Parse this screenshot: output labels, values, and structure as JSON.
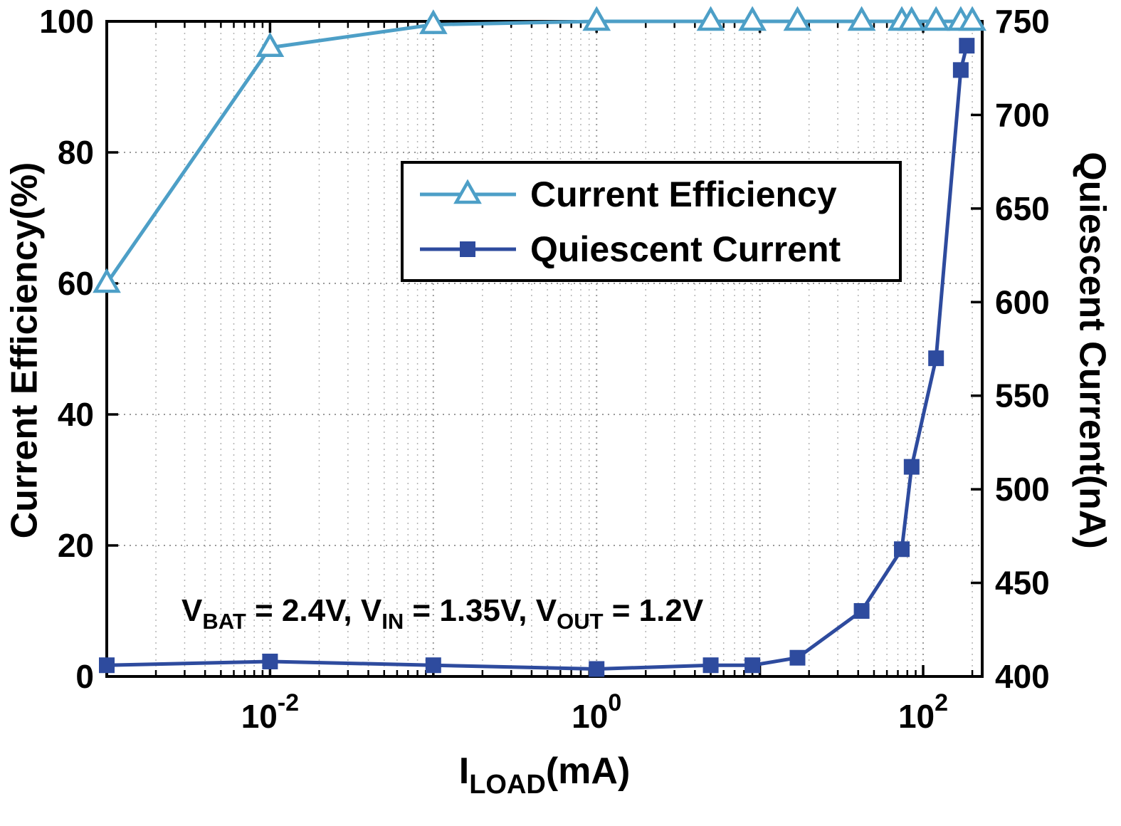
{
  "figure": {
    "background": "#ffffff",
    "axis_color": "#000000",
    "text_color": "#000000",
    "grid_color": "#b3b3b3",
    "grid_major_color": "#9a9a9a"
  },
  "chart_data": {
    "type": "line",
    "x_scale": "log",
    "xlim": [
      0.001,
      230
    ],
    "ylim_left": [
      0,
      100
    ],
    "ylim_right": [
      400,
      750
    ],
    "xlabel_parts": [
      {
        "t": "I"
      },
      {
        "sub": "LOAD"
      },
      {
        "t": "(mA)"
      }
    ],
    "ylabel_left": "Current Efficiency(%)",
    "ylabel_right": "Quiescent Current(nA)",
    "yticks_left": [
      0,
      20,
      40,
      60,
      80,
      100
    ],
    "yticks_right": [
      400,
      450,
      500,
      550,
      600,
      650,
      700,
      750
    ],
    "xticks": [
      {
        "value": 0.01,
        "base": "10",
        "exp": "-2"
      },
      {
        "value": 1,
        "base": "10",
        "exp": "0"
      },
      {
        "value": 100,
        "base": "10",
        "exp": "2"
      }
    ],
    "grid": true,
    "legend": {
      "position": "upper-center",
      "entries": [
        "Current Efficiency",
        "Quiescent Current"
      ]
    },
    "annotation_parts": [
      {
        "t": "V"
      },
      {
        "sub": "BAT"
      },
      {
        "t": " = 2.4V, V"
      },
      {
        "sub": "IN"
      },
      {
        "t": " = 1.35V, V"
      },
      {
        "sub": "OUT"
      },
      {
        "t": " = 1.2V"
      }
    ],
    "series": [
      {
        "name": "Current Efficiency",
        "axis": "left",
        "color": "#4d9fc7",
        "marker": "triangle-open",
        "x": [
          0.001,
          0.01,
          0.1,
          1,
          5,
          9,
          17,
          42,
          74,
          85,
          120,
          170,
          200
        ],
        "y": [
          60,
          96,
          99.5,
          100,
          100,
          100,
          100,
          100,
          100,
          100,
          100,
          100,
          100
        ]
      },
      {
        "name": "Quiescent Current",
        "axis": "right",
        "color": "#2e4b9e",
        "marker": "square-filled",
        "x": [
          0.001,
          0.01,
          0.1,
          1,
          5,
          9,
          17,
          42,
          74,
          85,
          120,
          170,
          185
        ],
        "y": [
          406,
          408,
          406,
          404,
          406,
          406,
          410,
          435,
          468,
          512,
          570,
          724,
          737
        ]
      }
    ]
  }
}
